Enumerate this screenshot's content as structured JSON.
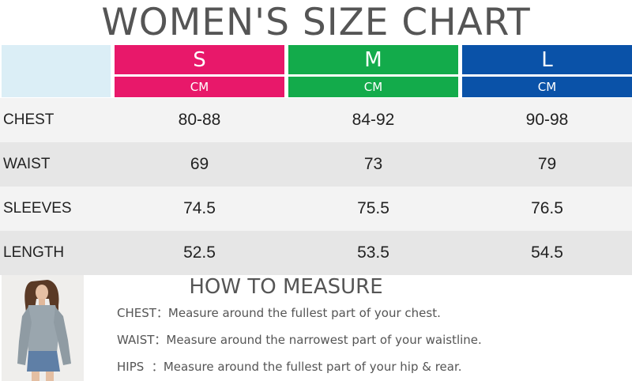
{
  "title": "WOMEN'S SIZE CHART",
  "colors": {
    "S": "#e8186a",
    "M": "#13ab4b",
    "L": "#0a52a8",
    "corner": "#dbeef6"
  },
  "sizes": [
    {
      "label": "S",
      "unit": "CM"
    },
    {
      "label": "M",
      "unit": "CM"
    },
    {
      "label": "L",
      "unit": "CM"
    }
  ],
  "rows": [
    {
      "label": "CHEST",
      "values": [
        "80-88",
        "84-92",
        "90-98"
      ]
    },
    {
      "label": "WAIST",
      "values": [
        "69",
        "73",
        "79"
      ]
    },
    {
      "label": "SLEEVES",
      "values": [
        "74.5",
        "75.5",
        "76.5"
      ]
    },
    {
      "label": "LENGTH",
      "values": [
        "52.5",
        "53.5",
        "54.5"
      ]
    }
  ],
  "how_to_measure": {
    "title": "HOW TO MEASURE",
    "items": [
      {
        "key": "CHEST：",
        "text": "Measure around the fullest part of your chest."
      },
      {
        "key": "WAIST：",
        "text": "Measure around the narrowest part of your waistline."
      },
      {
        "key": "HIPS  ：",
        "text": "Measure around the fullest part of your hip & rear."
      }
    ]
  }
}
